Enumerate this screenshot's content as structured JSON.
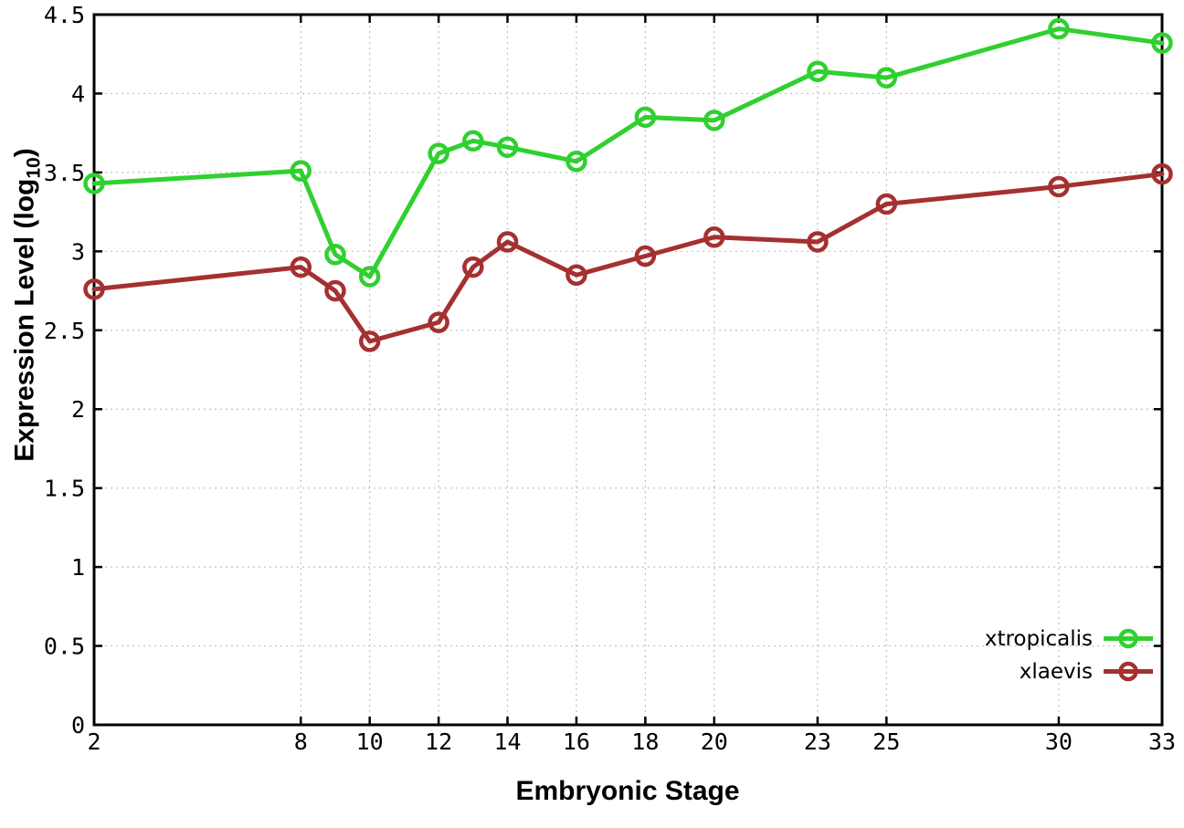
{
  "chart_data": {
    "type": "line",
    "title": "",
    "xlabel": "Embryonic Stage",
    "ylabel": "Expression Level (log10)",
    "ylabel_parts": {
      "base": "Expression Level (log",
      "sub": "10",
      "close": ")"
    },
    "x": [
      2,
      8,
      9,
      10,
      12,
      13,
      14,
      16,
      18,
      20,
      23,
      25,
      30,
      33
    ],
    "xticks": [
      2,
      8,
      10,
      12,
      14,
      16,
      18,
      20,
      23,
      25,
      30,
      33
    ],
    "yticks": [
      0,
      0.5,
      1,
      1.5,
      2,
      2.5,
      3,
      3.5,
      4,
      4.5
    ],
    "xlim": [
      2,
      33
    ],
    "ylim": [
      0,
      4.5
    ],
    "grid": true,
    "legend_position": "bottom-right",
    "series": [
      {
        "name": "xtropicalis",
        "color": "#2fd02f",
        "values": [
          3.43,
          3.51,
          2.98,
          2.84,
          3.62,
          3.7,
          3.66,
          3.57,
          3.85,
          3.83,
          4.14,
          4.1,
          4.41,
          4.32
        ]
      },
      {
        "name": "xlaevis",
        "color": "#a53030",
        "values": [
          2.76,
          2.9,
          2.75,
          2.43,
          2.55,
          2.9,
          3.06,
          2.85,
          2.97,
          3.09,
          3.06,
          3.3,
          3.41,
          3.49
        ]
      }
    ],
    "style": {
      "border_color": "#000000",
      "grid_color": "#c0c0c0",
      "tick_label_color": "#000000",
      "background": "#ffffff"
    }
  }
}
